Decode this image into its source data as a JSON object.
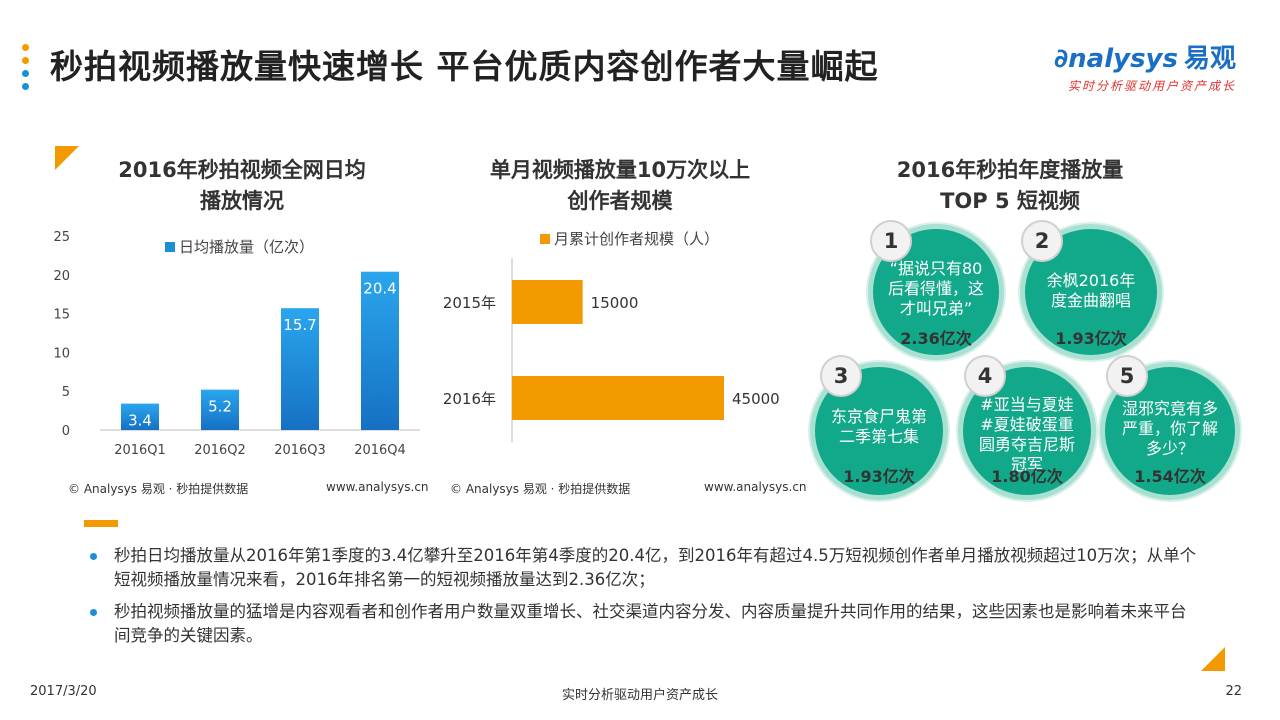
{
  "page_title": "秒拍视频播放量快速增长 平台优质内容创作者大量崛起",
  "logo": {
    "brand": "nalysys",
    "brand_cn": "易观",
    "tagline": "实时分析驱动用户资产成长"
  },
  "colors": {
    "blue": "#1a8fd8",
    "orange": "#f39a00",
    "teal": "#12a88a"
  },
  "chart_data": [
    {
      "type": "bar",
      "title_line1": "2016年秒拍视频全网日均",
      "title_line2": "播放情况",
      "legend": "日均播放量（亿次）",
      "categories": [
        "2016Q1",
        "2016Q2",
        "2016Q3",
        "2016Q4"
      ],
      "values": [
        3.4,
        5.2,
        15.7,
        20.4
      ],
      "value_labels": [
        "3.4",
        "5.2",
        "15.7",
        "20.4"
      ],
      "yticks": [
        "0",
        "5",
        "10",
        "15",
        "20",
        "25"
      ],
      "ylim": [
        0,
        25
      ],
      "color": "#1a8fd8",
      "source": "© Analysys 易观 · 秒拍提供数据",
      "site": "www.analysys.cn"
    },
    {
      "type": "bar",
      "orientation": "horizontal",
      "title_line1": "单月视频播放量10万次以上",
      "title_line2": "创作者规模",
      "legend": "月累计创作者规模（人）",
      "categories": [
        "2015年",
        "2016年"
      ],
      "values": [
        15000,
        45000
      ],
      "value_labels": [
        "15000",
        "45000"
      ],
      "color": "#f39a00",
      "source": "© Analysys 易观 · 秒拍提供数据",
      "site": "www.analysys.cn"
    }
  ],
  "top5": {
    "title_line1": "2016年秒拍年度播放量",
    "title_line2": "TOP 5 短视频",
    "items": [
      {
        "rank": "1",
        "title": "“据说只有80后看得懂，这才叫兄弟”",
        "plays": "2.36亿次"
      },
      {
        "rank": "2",
        "title": "余枫2016年度金曲翻唱",
        "plays": "1.93亿次"
      },
      {
        "rank": "3",
        "title": "东京食尸鬼第二季第七集",
        "plays": "1.93亿次"
      },
      {
        "rank": "4",
        "title": "#亚当与夏娃#夏娃破蛋重圆勇夺吉尼斯冠军",
        "plays": "1.80亿次"
      },
      {
        "rank": "5",
        "title": "湿邪究竟有多严重，你了解多少？",
        "plays": "1.54亿次"
      }
    ]
  },
  "bullets": [
    "秒拍日均播放量从2016年第1季度的3.4亿攀升至2016年第4季度的20.4亿，到2016年有超过4.5万短视频创作者单月播放视频超过10万次；从单个短视频播放量情况来看，2016年排名第一的短视频播放量达到2.36亿次；",
    "秒拍视频播放量的猛增是内容观看者和创作者用户数量双重增长、社交渠道内容分发、内容质量提升共同作用的结果，这些因素也是影响着未来平台间竞争的关键因素。"
  ],
  "footer": {
    "date": "2017/3/20",
    "slogan": "实时分析驱动用户资产成长",
    "page": "22"
  }
}
